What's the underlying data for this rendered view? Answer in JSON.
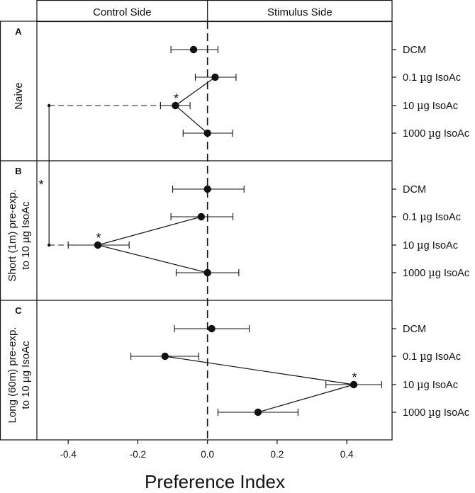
{
  "chart_data": {
    "type": "scatter",
    "title": "",
    "xlabel": "Preference Index",
    "ylabel": "",
    "xlim": [
      -0.49,
      0.53
    ],
    "x_ticks": [
      -0.4,
      -0.2,
      0.0,
      0.2,
      0.4
    ],
    "x_tick_labels": [
      "-0.4",
      "-0.2",
      "0.0",
      "0.2",
      "0.4"
    ],
    "side_labels": {
      "left": "Control Side",
      "right": "Stimulus Side"
    },
    "categories": [
      "DCM",
      "0.1 µg IsoAc",
      "10 µg IsoAc",
      "1000 µg IsoAc"
    ],
    "category_labels": [
      {
        "pre": "DCM",
        "mu": "",
        "post": ""
      },
      {
        "pre": "0.1 ",
        "mu": "µ",
        "post": "g IsoAc"
      },
      {
        "pre": "10 ",
        "mu": "µ",
        "post": "g IsoAc"
      },
      {
        "pre": "1000 ",
        "mu": "µ",
        "post": "g IsoAc"
      }
    ],
    "panels": [
      {
        "letter": "A",
        "label_lines": [
          "Naive"
        ],
        "series": [
          {
            "category": "DCM",
            "value": -0.04,
            "err_low": -0.105,
            "err_high": 0.03
          },
          {
            "category": "0.1 µg IsoAc",
            "value": 0.022,
            "err_low": -0.035,
            "err_high": 0.082
          },
          {
            "category": "10 µg IsoAc",
            "value": -0.092,
            "err_low": -0.135,
            "err_high": -0.05
          },
          {
            "category": "1000 µg IsoAc",
            "value": 0.0,
            "err_low": -0.07,
            "err_high": 0.072
          }
        ],
        "connected": [
          "0.1 µg IsoAc",
          "10 µg IsoAc",
          "1000 µg IsoAc"
        ],
        "significant": [
          "10 µg IsoAc"
        ]
      },
      {
        "letter": "B",
        "label_lines": [
          "Short (1m) pre-exp.",
          "to 10 µg IsoAc"
        ],
        "series": [
          {
            "category": "DCM",
            "value": 0.0,
            "err_low": -0.1,
            "err_high": 0.105
          },
          {
            "category": "0.1 µg IsoAc",
            "value": -0.018,
            "err_low": -0.105,
            "err_high": 0.073
          },
          {
            "category": "10 µg IsoAc",
            "value": -0.315,
            "err_low": -0.4,
            "err_high": -0.225
          },
          {
            "category": "1000 µg IsoAc",
            "value": 0.0,
            "err_low": -0.09,
            "err_high": 0.09
          }
        ],
        "connected": [
          "0.1 µg IsoAc",
          "10 µg IsoAc",
          "1000 µg IsoAc"
        ],
        "significant": [
          "10 µg IsoAc"
        ]
      },
      {
        "letter": "C",
        "label_lines": [
          "Long (60m) pre-exp.",
          "to 10 µg IsoAc"
        ],
        "series": [
          {
            "category": "DCM",
            "value": 0.012,
            "err_low": -0.095,
            "err_high": 0.12
          },
          {
            "category": "0.1 µg IsoAc",
            "value": -0.122,
            "err_low": -0.22,
            "err_high": -0.025
          },
          {
            "category": "10 µg IsoAc",
            "value": 0.42,
            "err_low": 0.34,
            "err_high": 0.5
          },
          {
            "category": "1000 µg IsoAc",
            "value": 0.145,
            "err_low": 0.03,
            "err_high": 0.26
          }
        ],
        "connected": [
          "0.1 µg IsoAc",
          "10 µg IsoAc",
          "1000 µg IsoAc"
        ],
        "significant": [
          "10 µg IsoAc"
        ]
      }
    ],
    "comparison": {
      "between": [
        "A: 10 µg IsoAc",
        "B: 10 µg IsoAc"
      ],
      "x_value": -0.455,
      "marker": "*"
    }
  }
}
